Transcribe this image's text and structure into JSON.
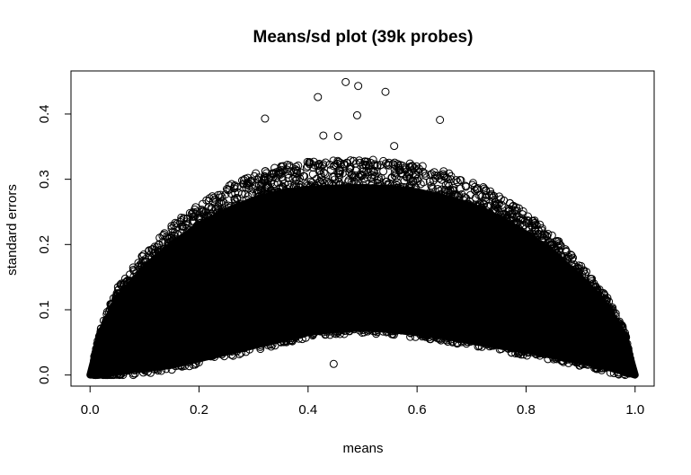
{
  "chart_data": {
    "type": "scatter",
    "title": "Means/sd plot (39k probes)",
    "xlabel": "means",
    "ylabel": "standard errors",
    "xlim": [
      -0.035,
      1.035
    ],
    "ylim": [
      -0.017,
      0.466
    ],
    "x_ticks": [
      {
        "value": 0.0,
        "label": "0.0"
      },
      {
        "value": 0.2,
        "label": "0.2"
      },
      {
        "value": 0.4,
        "label": "0.4"
      },
      {
        "value": 0.6,
        "label": "0.6"
      },
      {
        "value": 0.8,
        "label": "0.8"
      },
      {
        "value": 1.0,
        "label": "1.0"
      }
    ],
    "y_ticks": [
      {
        "value": 0.0,
        "label": "0.0"
      },
      {
        "value": 0.1,
        "label": "0.1"
      },
      {
        "value": 0.2,
        "label": "0.2"
      },
      {
        "value": 0.3,
        "label": "0.3"
      },
      {
        "value": 0.4,
        "label": "0.4"
      }
    ],
    "grid": false,
    "marker": "open-circle",
    "point_count": 39000,
    "outlier_points": [
      {
        "x": 0.469,
        "y": 0.449
      },
      {
        "x": 0.492,
        "y": 0.443
      },
      {
        "x": 0.542,
        "y": 0.434
      },
      {
        "x": 0.418,
        "y": 0.426
      },
      {
        "x": 0.49,
        "y": 0.398
      },
      {
        "x": 0.321,
        "y": 0.393
      },
      {
        "x": 0.642,
        "y": 0.391
      },
      {
        "x": 0.428,
        "y": 0.367
      },
      {
        "x": 0.455,
        "y": 0.366
      },
      {
        "x": 0.558,
        "y": 0.351
      },
      {
        "x": 0.447,
        "y": 0.017
      }
    ],
    "envelope": {
      "x": [
        0.0,
        0.02,
        0.05,
        0.1,
        0.15,
        0.2,
        0.25,
        0.3,
        0.35,
        0.4,
        0.45,
        0.5,
        0.55,
        0.6,
        0.65,
        0.7,
        0.75,
        0.8,
        0.85,
        0.9,
        0.95,
        0.98,
        1.0
      ],
      "upper": [
        0.0,
        0.07,
        0.125,
        0.175,
        0.215,
        0.245,
        0.27,
        0.288,
        0.3,
        0.306,
        0.308,
        0.309,
        0.307,
        0.302,
        0.292,
        0.278,
        0.258,
        0.232,
        0.2,
        0.16,
        0.11,
        0.065,
        0.0
      ],
      "lower": [
        0.0,
        0.0,
        0.005,
        0.01,
        0.015,
        0.025,
        0.035,
        0.045,
        0.055,
        0.065,
        0.07,
        0.072,
        0.07,
        0.065,
        0.06,
        0.052,
        0.045,
        0.038,
        0.03,
        0.022,
        0.012,
        0.005,
        0.0
      ]
    },
    "colors": {
      "marker": "#000000",
      "background": "#ffffff",
      "axes": "#000000"
    }
  }
}
